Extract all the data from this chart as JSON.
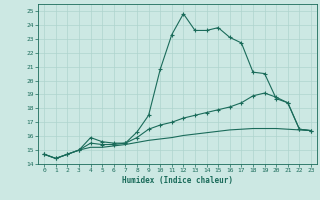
{
  "xlabel": "Humidex (Indice chaleur)",
  "bg_color": "#cce8e3",
  "line_color": "#1a6b5a",
  "grid_color": "#afd4ce",
  "line1": {
    "x": [
      0,
      1,
      2,
      3,
      4,
      5,
      6,
      7,
      8,
      9,
      10,
      11,
      12,
      13,
      14,
      15,
      16,
      17,
      18,
      19,
      20,
      21,
      22,
      23
    ],
    "y": [
      14.7,
      14.4,
      14.7,
      15.0,
      15.9,
      15.6,
      15.5,
      15.5,
      16.3,
      17.5,
      20.8,
      23.3,
      24.8,
      23.6,
      23.6,
      23.8,
      23.1,
      22.7,
      20.6,
      20.5,
      18.7,
      18.4,
      16.5,
      16.4
    ],
    "markers": true
  },
  "line2": {
    "x": [
      0,
      1,
      2,
      3,
      4,
      5,
      6,
      7,
      8,
      9,
      10,
      11,
      12,
      13,
      14,
      15,
      16,
      17,
      18,
      19,
      20,
      21,
      22,
      23
    ],
    "y": [
      14.7,
      14.4,
      14.7,
      15.0,
      15.5,
      15.4,
      15.4,
      15.5,
      15.9,
      16.5,
      16.8,
      17.0,
      17.3,
      17.5,
      17.7,
      17.9,
      18.1,
      18.4,
      18.9,
      19.1,
      18.8,
      18.4,
      16.5,
      16.4
    ],
    "markers": true
  },
  "line3": {
    "x": [
      0,
      1,
      2,
      3,
      4,
      5,
      6,
      7,
      8,
      9,
      10,
      11,
      12,
      13,
      14,
      15,
      16,
      17,
      18,
      19,
      20,
      21,
      22,
      23
    ],
    "y": [
      14.7,
      14.4,
      14.7,
      15.0,
      15.2,
      15.2,
      15.3,
      15.4,
      15.55,
      15.7,
      15.8,
      15.9,
      16.05,
      16.15,
      16.25,
      16.35,
      16.45,
      16.5,
      16.55,
      16.55,
      16.55,
      16.5,
      16.45,
      16.4
    ],
    "markers": false
  },
  "ylim": [
    14.0,
    25.5
  ],
  "xlim": [
    -0.5,
    23.5
  ],
  "yticks": [
    14,
    15,
    16,
    17,
    18,
    19,
    20,
    21,
    22,
    23,
    24,
    25
  ],
  "xticks": [
    0,
    1,
    2,
    3,
    4,
    5,
    6,
    7,
    8,
    9,
    10,
    11,
    12,
    13,
    14,
    15,
    16,
    17,
    18,
    19,
    20,
    21,
    22,
    23
  ]
}
